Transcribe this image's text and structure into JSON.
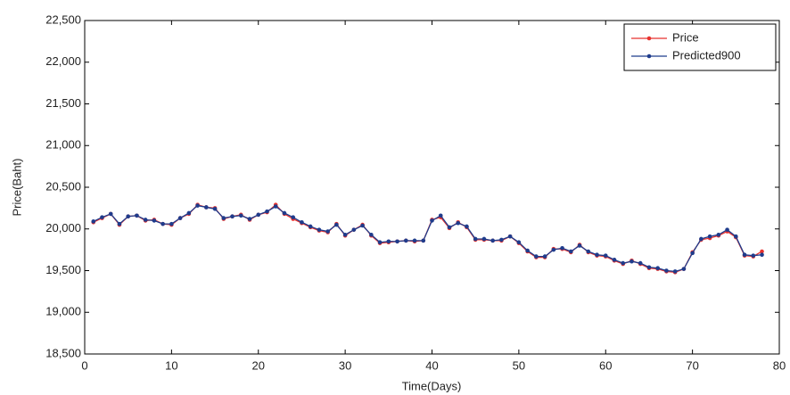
{
  "chart_data": {
    "type": "line",
    "xlabel": "Time(Days)",
    "ylabel": "Price(Baht)",
    "x": [
      1,
      2,
      3,
      4,
      5,
      6,
      7,
      8,
      9,
      10,
      11,
      12,
      13,
      14,
      15,
      16,
      17,
      18,
      19,
      20,
      21,
      22,
      23,
      24,
      25,
      26,
      27,
      28,
      29,
      30,
      31,
      32,
      33,
      34,
      35,
      36,
      37,
      38,
      39,
      40,
      41,
      42,
      43,
      44,
      45,
      46,
      47,
      48,
      49,
      50,
      51,
      52,
      53,
      54,
      55,
      56,
      57,
      58,
      59,
      60,
      61,
      62,
      63,
      64,
      65,
      66,
      67,
      68,
      69,
      70,
      71,
      72,
      73,
      74,
      75,
      76,
      77,
      78
    ],
    "series": [
      {
        "name": "Price",
        "color": "#e8322e",
        "values": [
          20080,
          20130,
          20180,
          20050,
          20150,
          20160,
          20100,
          20110,
          20060,
          20050,
          20130,
          20180,
          20290,
          20260,
          20250,
          20120,
          20150,
          20170,
          20110,
          20170,
          20200,
          20290,
          20180,
          20120,
          20070,
          20020,
          19980,
          19960,
          20060,
          19920,
          19990,
          20050,
          19920,
          19830,
          19840,
          19850,
          19860,
          19850,
          19860,
          20110,
          20140,
          20010,
          20080,
          20020,
          19870,
          19870,
          19860,
          19860,
          19910,
          19830,
          19730,
          19660,
          19660,
          19760,
          19760,
          19720,
          19810,
          19720,
          19680,
          19670,
          19620,
          19580,
          19620,
          19580,
          19530,
          19520,
          19490,
          19480,
          19520,
          19720,
          19870,
          19890,
          19920,
          19970,
          19900,
          19680,
          19670,
          19730
        ]
      },
      {
        "name": "Predicted900",
        "color": "#1f3c8c",
        "values": [
          20090,
          20140,
          20180,
          20060,
          20150,
          20160,
          20110,
          20100,
          20060,
          20060,
          20130,
          20190,
          20280,
          20260,
          20240,
          20130,
          20150,
          20160,
          20120,
          20170,
          20210,
          20270,
          20190,
          20140,
          20080,
          20030,
          19990,
          19970,
          20050,
          19930,
          19990,
          20040,
          19930,
          19840,
          19850,
          19850,
          19860,
          19860,
          19860,
          20100,
          20160,
          20020,
          20070,
          20030,
          19880,
          19880,
          19860,
          19870,
          19910,
          19840,
          19740,
          19670,
          19670,
          19750,
          19770,
          19730,
          19800,
          19730,
          19690,
          19680,
          19630,
          19590,
          19610,
          19590,
          19540,
          19530,
          19500,
          19490,
          19520,
          19710,
          19880,
          19910,
          19930,
          19990,
          19910,
          19690,
          19680,
          19690
        ]
      }
    ],
    "xlim": [
      0,
      80
    ],
    "xticks": [
      0,
      10,
      20,
      30,
      40,
      50,
      60,
      70,
      80
    ],
    "ylim": [
      18500,
      22500
    ],
    "yticks": [
      {
        "value": 18500,
        "label": "18,500"
      },
      {
        "value": 19000,
        "label": "19,000"
      },
      {
        "value": 19500,
        "label": "19,500"
      },
      {
        "value": 20000,
        "label": "20,000"
      },
      {
        "value": 20500,
        "label": "20,500"
      },
      {
        "value": 21000,
        "label": "21,000"
      },
      {
        "value": 21500,
        "label": "21,500"
      },
      {
        "value": 22000,
        "label": "22,000"
      },
      {
        "value": 22500,
        "label": "22,500"
      }
    ],
    "legend": "top-right"
  }
}
